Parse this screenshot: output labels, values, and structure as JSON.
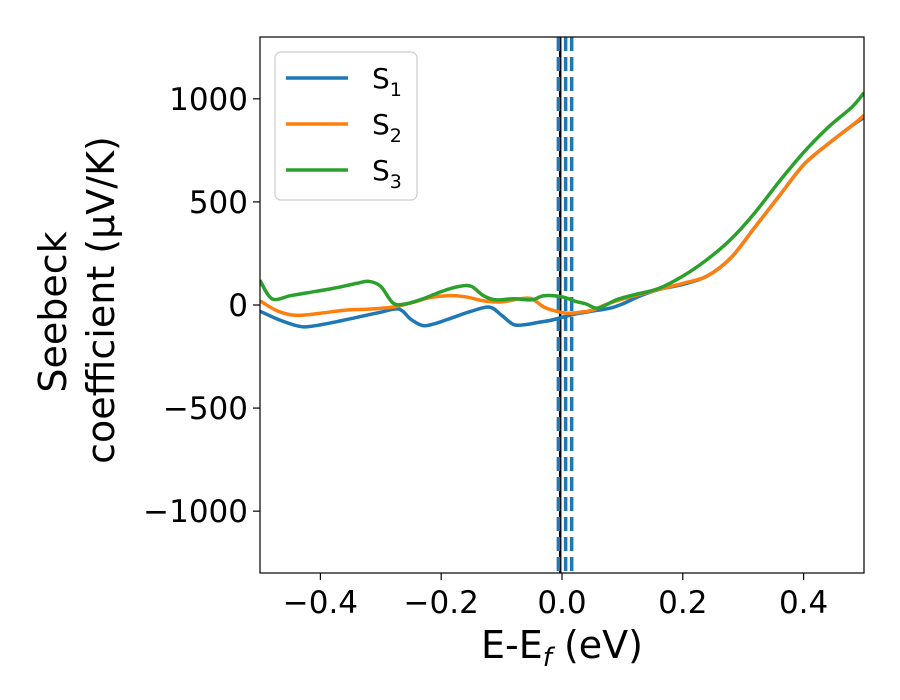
{
  "chart_data": {
    "type": "line",
    "xlabel_main": "E-E",
    "xlabel_sub": "f",
    "xlabel_unit": " (eV)",
    "ylabel_line1": "Seebeck",
    "ylabel_line2": "coefficient  (μV/K)",
    "xlim": [
      -0.5,
      0.5
    ],
    "ylim": [
      -1300,
      1300
    ],
    "x_ticks": [
      -0.4,
      -0.2,
      0.0,
      0.2,
      0.4
    ],
    "x_tick_labels": [
      "−0.4",
      "−0.2",
      "0.0",
      "0.2",
      "0.4"
    ],
    "y_ticks": [
      -1000,
      -500,
      0,
      500,
      1000
    ],
    "y_tick_labels": [
      "−1000",
      "−500",
      "0",
      "500",
      "1000"
    ],
    "grid": false,
    "legend_position": "top-left",
    "series": [
      {
        "name": "S",
        "sub": "1",
        "color": "#1f77b4",
        "x": [
          -0.5,
          -0.47,
          -0.44,
          -0.42,
          -0.38,
          -0.34,
          -0.3,
          -0.27,
          -0.25,
          -0.23,
          -0.21,
          -0.18,
          -0.15,
          -0.12,
          -0.1,
          -0.08,
          -0.06,
          -0.04,
          -0.02,
          0.0,
          0.02,
          0.04,
          0.06,
          0.08,
          0.1,
          0.13,
          0.16,
          0.2,
          0.24,
          0.28,
          0.32,
          0.36,
          0.4,
          0.44,
          0.48,
          0.5
        ],
        "values": [
          -30,
          -70,
          -100,
          -105,
          -85,
          -60,
          -35,
          -20,
          -70,
          -100,
          -90,
          -60,
          -30,
          -10,
          -50,
          -95,
          -95,
          -85,
          -75,
          -60,
          -45,
          -35,
          -25,
          -15,
          5,
          45,
          75,
          100,
          140,
          230,
          380,
          530,
          680,
          780,
          870,
          910
        ]
      },
      {
        "name": "S",
        "sub": "2",
        "color": "#ff7f0e",
        "x": [
          -0.5,
          -0.47,
          -0.44,
          -0.4,
          -0.36,
          -0.32,
          -0.28,
          -0.25,
          -0.22,
          -0.19,
          -0.16,
          -0.13,
          -0.1,
          -0.07,
          -0.05,
          -0.03,
          -0.01,
          0.01,
          0.03,
          0.05,
          0.08,
          0.12,
          0.16,
          0.2,
          0.24,
          0.28,
          0.32,
          0.36,
          0.4,
          0.44,
          0.48,
          0.5
        ],
        "values": [
          20,
          -30,
          -50,
          -40,
          -25,
          -20,
          -10,
          10,
          35,
          45,
          40,
          20,
          15,
          30,
          30,
          -10,
          -30,
          -40,
          -35,
          -25,
          10,
          45,
          75,
          105,
          140,
          230,
          380,
          530,
          680,
          780,
          870,
          920
        ]
      },
      {
        "name": "S",
        "sub": "3",
        "color": "#2ca02c",
        "x": [
          -0.5,
          -0.48,
          -0.45,
          -0.42,
          -0.38,
          -0.34,
          -0.32,
          -0.3,
          -0.28,
          -0.26,
          -0.23,
          -0.2,
          -0.17,
          -0.15,
          -0.13,
          -0.11,
          -0.08,
          -0.05,
          -0.03,
          0.0,
          0.02,
          0.04,
          0.06,
          0.09,
          0.12,
          0.16,
          0.2,
          0.24,
          0.28,
          0.32,
          0.36,
          0.4,
          0.44,
          0.48,
          0.5
        ],
        "values": [
          120,
          30,
          45,
          60,
          80,
          105,
          115,
          90,
          10,
          5,
          30,
          65,
          90,
          90,
          45,
          25,
          30,
          25,
          45,
          40,
          20,
          5,
          -15,
          25,
          50,
          80,
          140,
          220,
          320,
          450,
          600,
          740,
          860,
          960,
          1030
        ]
      }
    ],
    "vertical_lines": [
      {
        "x": -0.003,
        "color": "#000000",
        "style": "solid"
      },
      {
        "x": -0.006,
        "color": "#1f77b4",
        "style": "dashed"
      },
      {
        "x": 0.006,
        "color": "#1f77b4",
        "style": "dashed"
      },
      {
        "x": 0.016,
        "color": "#1f77b4",
        "style": "dashed"
      }
    ]
  }
}
